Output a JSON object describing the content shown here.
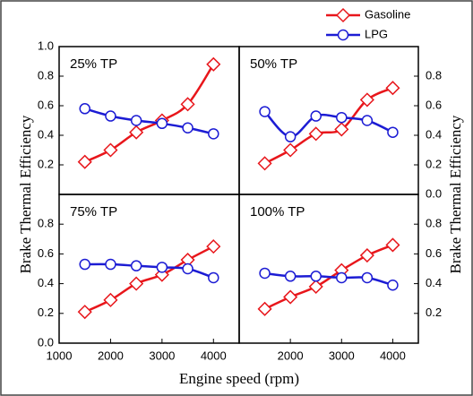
{
  "chart_data": [
    {
      "type": "line",
      "title": "25% TP",
      "ylabel": "Brake Thermal Efficiency",
      "y_axis_side": "left",
      "xlim": [
        1000,
        4500
      ],
      "ylim": [
        0,
        1.0
      ],
      "xticks": [],
      "yticks": [
        0.2,
        0.4,
        0.6,
        0.8,
        {
          "value": 1,
          "label": "1.0"
        }
      ],
      "x": [
        1500,
        2000,
        2500,
        3000,
        3500,
        4000
      ],
      "series": [
        {
          "name": "Gasoline",
          "color": "#e8161b",
          "marker": "diamond",
          "values": [
            0.22,
            0.3,
            0.42,
            0.5,
            0.61,
            0.88
          ]
        },
        {
          "name": "LPG",
          "color": "#1c1cd4",
          "marker": "circle",
          "values": [
            0.58,
            0.53,
            0.5,
            0.48,
            0.45,
            0.41
          ]
        }
      ]
    },
    {
      "type": "line",
      "title": "50% TP",
      "ylabel": "Brake Thermal Efficiency",
      "y_axis_side": "right",
      "xlim": [
        1000,
        4500
      ],
      "ylim": [
        0,
        1.0
      ],
      "xticks": [],
      "yticks": [
        {
          "value": 0,
          "label": "0.0"
        },
        0.2,
        0.4,
        0.6,
        0.8
      ],
      "x": [
        1500,
        2000,
        2500,
        3000,
        3500,
        4000
      ],
      "series": [
        {
          "name": "Gasoline",
          "color": "#e8161b",
          "marker": "diamond",
          "values": [
            0.21,
            0.3,
            0.41,
            0.44,
            0.64,
            0.72
          ]
        },
        {
          "name": "LPG",
          "color": "#1c1cd4",
          "marker": "circle",
          "values": [
            0.56,
            0.39,
            0.53,
            0.52,
            0.5,
            0.42
          ]
        }
      ]
    },
    {
      "type": "line",
      "title": "75% TP",
      "xlabel": "Engine speed  (rpm)",
      "y_axis_side": "left",
      "xlim": [
        1000,
        4500
      ],
      "ylim": [
        0,
        1.0
      ],
      "xticks": [
        1000,
        2000,
        3000,
        4000
      ],
      "yticks": [
        {
          "value": 0,
          "label": "0.0"
        },
        0.2,
        0.4,
        0.6,
        0.8
      ],
      "x": [
        1500,
        2000,
        2500,
        3000,
        3500,
        4000
      ],
      "series": [
        {
          "name": "Gasoline",
          "color": "#e8161b",
          "marker": "diamond",
          "values": [
            0.21,
            0.29,
            0.4,
            0.46,
            0.56,
            0.65
          ]
        },
        {
          "name": "LPG",
          "color": "#1c1cd4",
          "marker": "circle",
          "values": [
            0.53,
            0.53,
            0.52,
            0.51,
            0.5,
            0.44
          ]
        }
      ]
    },
    {
      "type": "line",
      "title": "100% TP",
      "y_axis_side": "right",
      "xlim": [
        1000,
        4500
      ],
      "ylim": [
        0,
        1.0
      ],
      "xticks": [
        2000,
        3000,
        4000
      ],
      "yticks": [
        0.2,
        0.4,
        0.6,
        0.8
      ],
      "x": [
        1500,
        2000,
        2500,
        3000,
        3500,
        4000
      ],
      "series": [
        {
          "name": "Gasoline",
          "color": "#e8161b",
          "marker": "diamond",
          "values": [
            0.23,
            0.31,
            0.38,
            0.49,
            0.59,
            0.66
          ]
        },
        {
          "name": "LPG",
          "color": "#1c1cd4",
          "marker": "circle",
          "values": [
            0.47,
            0.45,
            0.45,
            0.44,
            0.44,
            0.39
          ]
        }
      ]
    }
  ]
}
